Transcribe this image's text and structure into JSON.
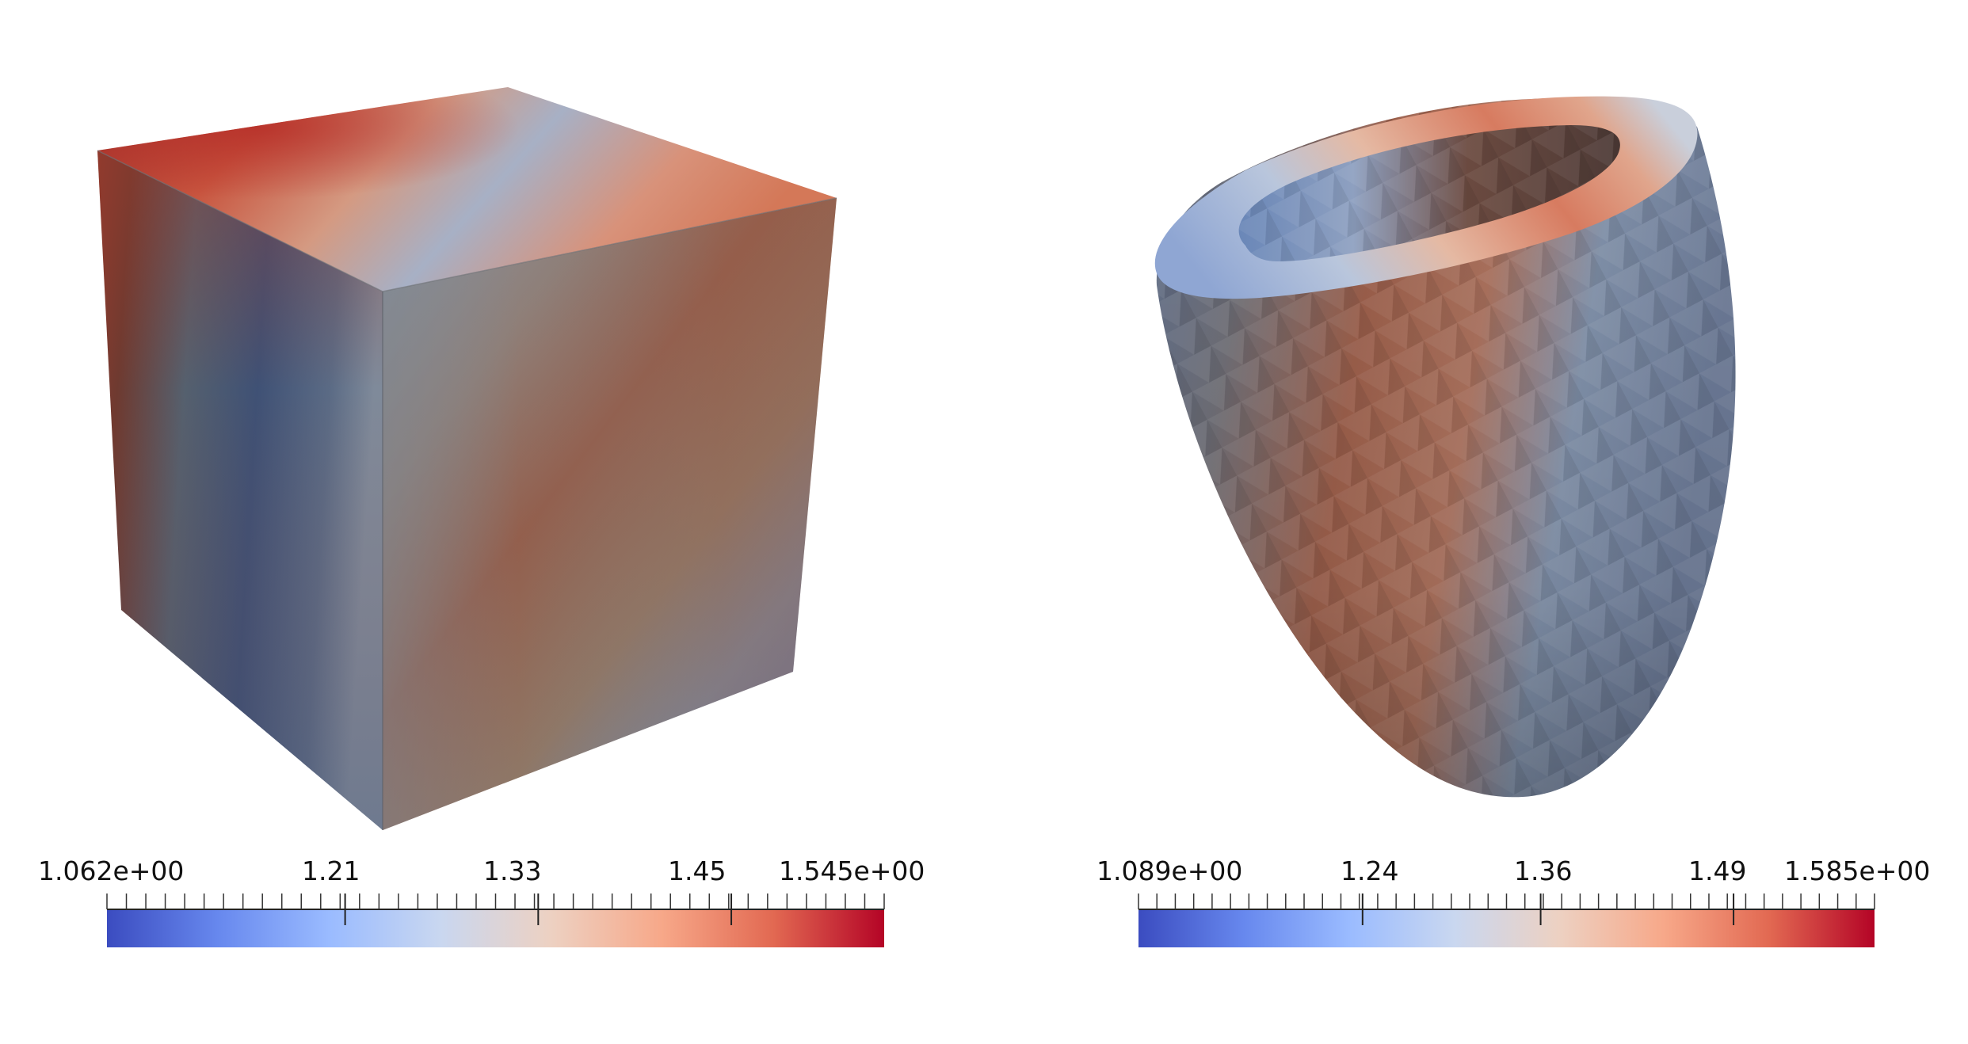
{
  "panels": [
    {
      "id": "cube",
      "colormap": [
        "#3b4cc0",
        "#6788ee",
        "#9abbff",
        "#c9d7f0",
        "#edd1c2",
        "#f7a889",
        "#e26952",
        "#b40426"
      ],
      "colorbar": {
        "min_label": "1.062e+00",
        "max_label": "1.545e+00",
        "tick_labels": [
          "1.21",
          "1.33",
          "1.45"
        ],
        "min": 1.062,
        "max": 1.545,
        "tick_values": [
          1.21,
          1.33,
          1.45
        ]
      }
    },
    {
      "id": "ventricle",
      "colormap": [
        "#3b4cc0",
        "#6788ee",
        "#9abbff",
        "#c9d7f0",
        "#edd1c2",
        "#f7a889",
        "#e26952",
        "#b40426"
      ],
      "colorbar": {
        "min_label": "1.089e+00",
        "max_label": "1.585e+00",
        "tick_labels": [
          "1.24",
          "1.36",
          "1.49"
        ],
        "min": 1.089,
        "max": 1.585,
        "tick_values": [
          1.24,
          1.36,
          1.49
        ]
      }
    }
  ]
}
